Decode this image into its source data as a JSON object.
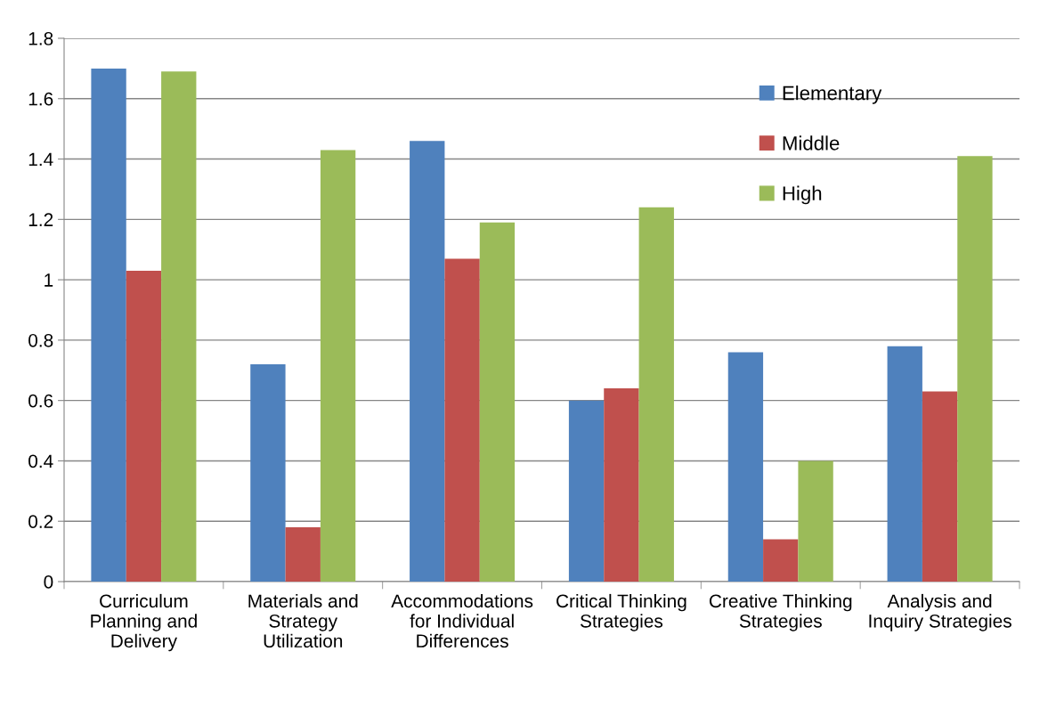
{
  "chart_data": {
    "type": "bar",
    "categories": [
      "Curriculum\nPlanning and\nDelivery",
      "Materials and\nStrategy\nUtilization",
      "Accommodations\nfor Individual\nDifferences",
      "Critical Thinking\nStrategies",
      "Creative Thinking\nStrategies",
      "Analysis and\nInquiry Strategies"
    ],
    "series": [
      {
        "name": "Elementary",
        "color": "#4f81bd",
        "values": [
          1.7,
          0.72,
          1.46,
          0.6,
          0.76,
          0.78
        ]
      },
      {
        "name": "Middle",
        "color": "#c0504d",
        "values": [
          1.03,
          0.18,
          1.07,
          0.64,
          0.14,
          0.63
        ]
      },
      {
        "name": "High",
        "color": "#9bbb59",
        "values": [
          1.69,
          1.43,
          1.19,
          1.24,
          0.4,
          1.41
        ]
      }
    ],
    "ylim": [
      0,
      1.8
    ],
    "yticks": [
      0,
      0.2,
      0.4,
      0.6,
      0.8,
      1,
      1.2,
      1.4,
      1.6,
      1.8
    ],
    "grid": "y",
    "legend": "top right"
  }
}
